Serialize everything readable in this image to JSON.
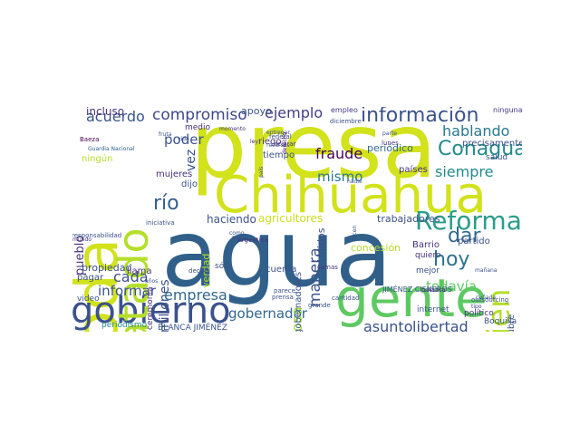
{
  "cloud": {
    "words": [
      {
        "text": "agua",
        "color": "#30608a"
      },
      {
        "text": "presa",
        "color": "#d2e21b"
      },
      {
        "text": "Chihuahua",
        "color": "#d2e21b"
      },
      {
        "text": "toda",
        "color": "#d2e21b"
      },
      {
        "text": "gente",
        "color": "#5ec962"
      },
      {
        "text": "gobierno",
        "color": "#3b528b"
      },
      {
        "text": "tratado",
        "color": "#b5de2b"
      },
      {
        "text": "Reforma",
        "color": "#2c9c8a"
      },
      {
        "text": "Conagua",
        "color": "#238a8d"
      },
      {
        "text": "información",
        "color": "#3b528b"
      },
      {
        "text": "bien",
        "color": "#b5de2b"
      },
      {
        "text": "compromiso",
        "color": "#404688"
      },
      {
        "text": "ejemplo",
        "color": "#433e85"
      },
      {
        "text": "acuerdo",
        "color": "#3b528b"
      },
      {
        "text": "hablando",
        "color": "#2a788e"
      },
      {
        "text": "precisamente",
        "color": "#3b528b"
      },
      {
        "text": "hoy",
        "color": "#2c728e"
      },
      {
        "text": "dar",
        "color": "#31688e"
      },
      {
        "text": "siempre",
        "color": "#238a8d"
      },
      {
        "text": "fraude",
        "color": "#440154"
      },
      {
        "text": "mismo",
        "color": "#2a788e"
      },
      {
        "text": "periódico",
        "color": "#31688e"
      },
      {
        "text": "poder",
        "color": "#3b528b"
      },
      {
        "text": "río",
        "color": "#355f8d"
      },
      {
        "text": "vez",
        "color": "#3b528b"
      },
      {
        "text": "incluso",
        "color": "#46327e"
      },
      {
        "text": "apoyo",
        "color": "#3b528b"
      },
      {
        "text": "empleo",
        "color": "#443983"
      },
      {
        "text": "diciembre",
        "color": "#3b528b"
      },
      {
        "text": "ninguna",
        "color": "#443983"
      },
      {
        "text": "medio",
        "color": "#46327e"
      },
      {
        "text": "riego",
        "color": "#46327e"
      },
      {
        "text": "tiempo",
        "color": "#3b528b"
      },
      {
        "text": "países",
        "color": "#46327e"
      },
      {
        "text": "mujeres",
        "color": "#46327e"
      },
      {
        "text": "dijo",
        "color": "#3b528b"
      },
      {
        "text": "ningún",
        "color": "#b5de2b"
      },
      {
        "text": "Baeza",
        "color": "#440154"
      },
      {
        "text": "Guardia Nacional",
        "color": "#30608a"
      },
      {
        "text": "pueblo",
        "color": "#46327e"
      },
      {
        "text": "haciendo",
        "color": "#3b528b"
      },
      {
        "text": "agricultores",
        "color": "#cae11f"
      },
      {
        "text": "manera",
        "color": "#3b528b"
      },
      {
        "text": "trabajadores",
        "color": "#3b528b"
      },
      {
        "text": "partido",
        "color": "#3b528b"
      },
      {
        "text": "Barrio",
        "color": "#46327e"
      },
      {
        "text": "quiero",
        "color": "#46327e"
      },
      {
        "text": "concesión",
        "color": "#b5de2b"
      },
      {
        "text": "cada",
        "color": "#3b528b"
      },
      {
        "text": "millones",
        "color": "#3b528b"
      },
      {
        "text": "informar",
        "color": "#3b528b"
      },
      {
        "text": "empresa",
        "color": "#31688e"
      },
      {
        "text": "propiedad",
        "color": "#3b528b"
      },
      {
        "text": "llama",
        "color": "#46327e"
      },
      {
        "text": "pagar",
        "color": "#3b528b"
      },
      {
        "text": "sólo",
        "color": "#3b528b"
      },
      {
        "text": "video",
        "color": "#3b528b"
      },
      {
        "text": "periodismo",
        "color": "#238a8d"
      },
      {
        "text": "BLANCA JIMÉNEZ",
        "color": "#3b528b"
      },
      {
        "text": "gobernador",
        "color": "#31688e"
      },
      {
        "text": "asunto",
        "color": "#3b528b"
      },
      {
        "text": "libertad",
        "color": "#3b528b"
      },
      {
        "text": "todavía",
        "color": "#5ec962"
      },
      {
        "text": "mejor",
        "color": "#3b528b"
      },
      {
        "text": "internet",
        "color": "#3b528b"
      },
      {
        "text": "JIMÉNEZ CISNEROS",
        "color": "#3b528b"
      },
      {
        "text": "político",
        "color": "#46327e"
      },
      {
        "text": "Boquilla",
        "color": "#3b528b"
      },
      {
        "text": "octubre",
        "color": "#3b528b"
      },
      {
        "text": "cosa",
        "color": "#a2da37"
      },
      {
        "text": "Unidos",
        "color": "#3b528b"
      },
      {
        "text": "gobernadores",
        "color": "#3b528b"
      },
      {
        "text": "cuenta",
        "color": "#3b528b"
      },
      {
        "text": "verdad",
        "color": "#b5de2b"
      },
      {
        "text": "ceremonia",
        "color": "#46327e"
      },
      {
        "text": "responsabilidad",
        "color": "#3b528b"
      },
      {
        "text": "salud",
        "color": "#3b528b"
      },
      {
        "text": "camas",
        "color": "#46327e"
      },
      {
        "text": "cantidad",
        "color": "#3b528b"
      },
      {
        "text": "grande",
        "color": "#3b528b"
      },
      {
        "text": "prensa",
        "color": "#3b528b"
      },
      {
        "text": "después",
        "color": "#3b528b"
      },
      {
        "text": "parece",
        "color": "#3b528b"
      },
      {
        "text": "decirle",
        "color": "#3b528b"
      },
      {
        "text": "iniciativa",
        "color": "#3b528b"
      },
      {
        "text": "Argentina",
        "color": "#46327e"
      },
      {
        "text": "federal",
        "color": "#3b528b"
      },
      {
        "text": "aclarar",
        "color": "#46327e"
      },
      {
        "text": "palabra",
        "color": "#46327e"
      },
      {
        "text": "outsourcing",
        "color": "#3b528b"
      },
      {
        "text": "tipo",
        "color": "#46327e"
      },
      {
        "text": "cuñada",
        "color": "#3b528b"
      },
      {
        "text": "mañana",
        "color": "#3b528b"
      },
      {
        "text": "lunes",
        "color": "#46327e"
      },
      {
        "text": "parte",
        "color": "#3b528b"
      },
      {
        "text": "fruta",
        "color": "#3b528b"
      },
      {
        "text": "recursos",
        "color": "#3b528b"
      },
      {
        "text": "entregar",
        "color": "#3b528b"
      },
      {
        "text": "momento",
        "color": "#46327e"
      },
      {
        "text": "mundo",
        "color": "#46327e"
      },
      {
        "text": "vida",
        "color": "#3b528b"
      },
      {
        "text": "país",
        "color": "#3b528b"
      },
      {
        "text": "derecho",
        "color": "#440154"
      },
      {
        "text": "años",
        "color": "#3b528b"
      },
      {
        "text": "nadie",
        "color": "#3b528b"
      },
      {
        "text": "dicen",
        "color": "#3b528b"
      },
      {
        "text": "como",
        "color": "#3b528b"
      },
      {
        "text": "fecha",
        "color": "#3b528b"
      },
      {
        "text": "ley",
        "color": "#46327e"
      }
    ]
  }
}
